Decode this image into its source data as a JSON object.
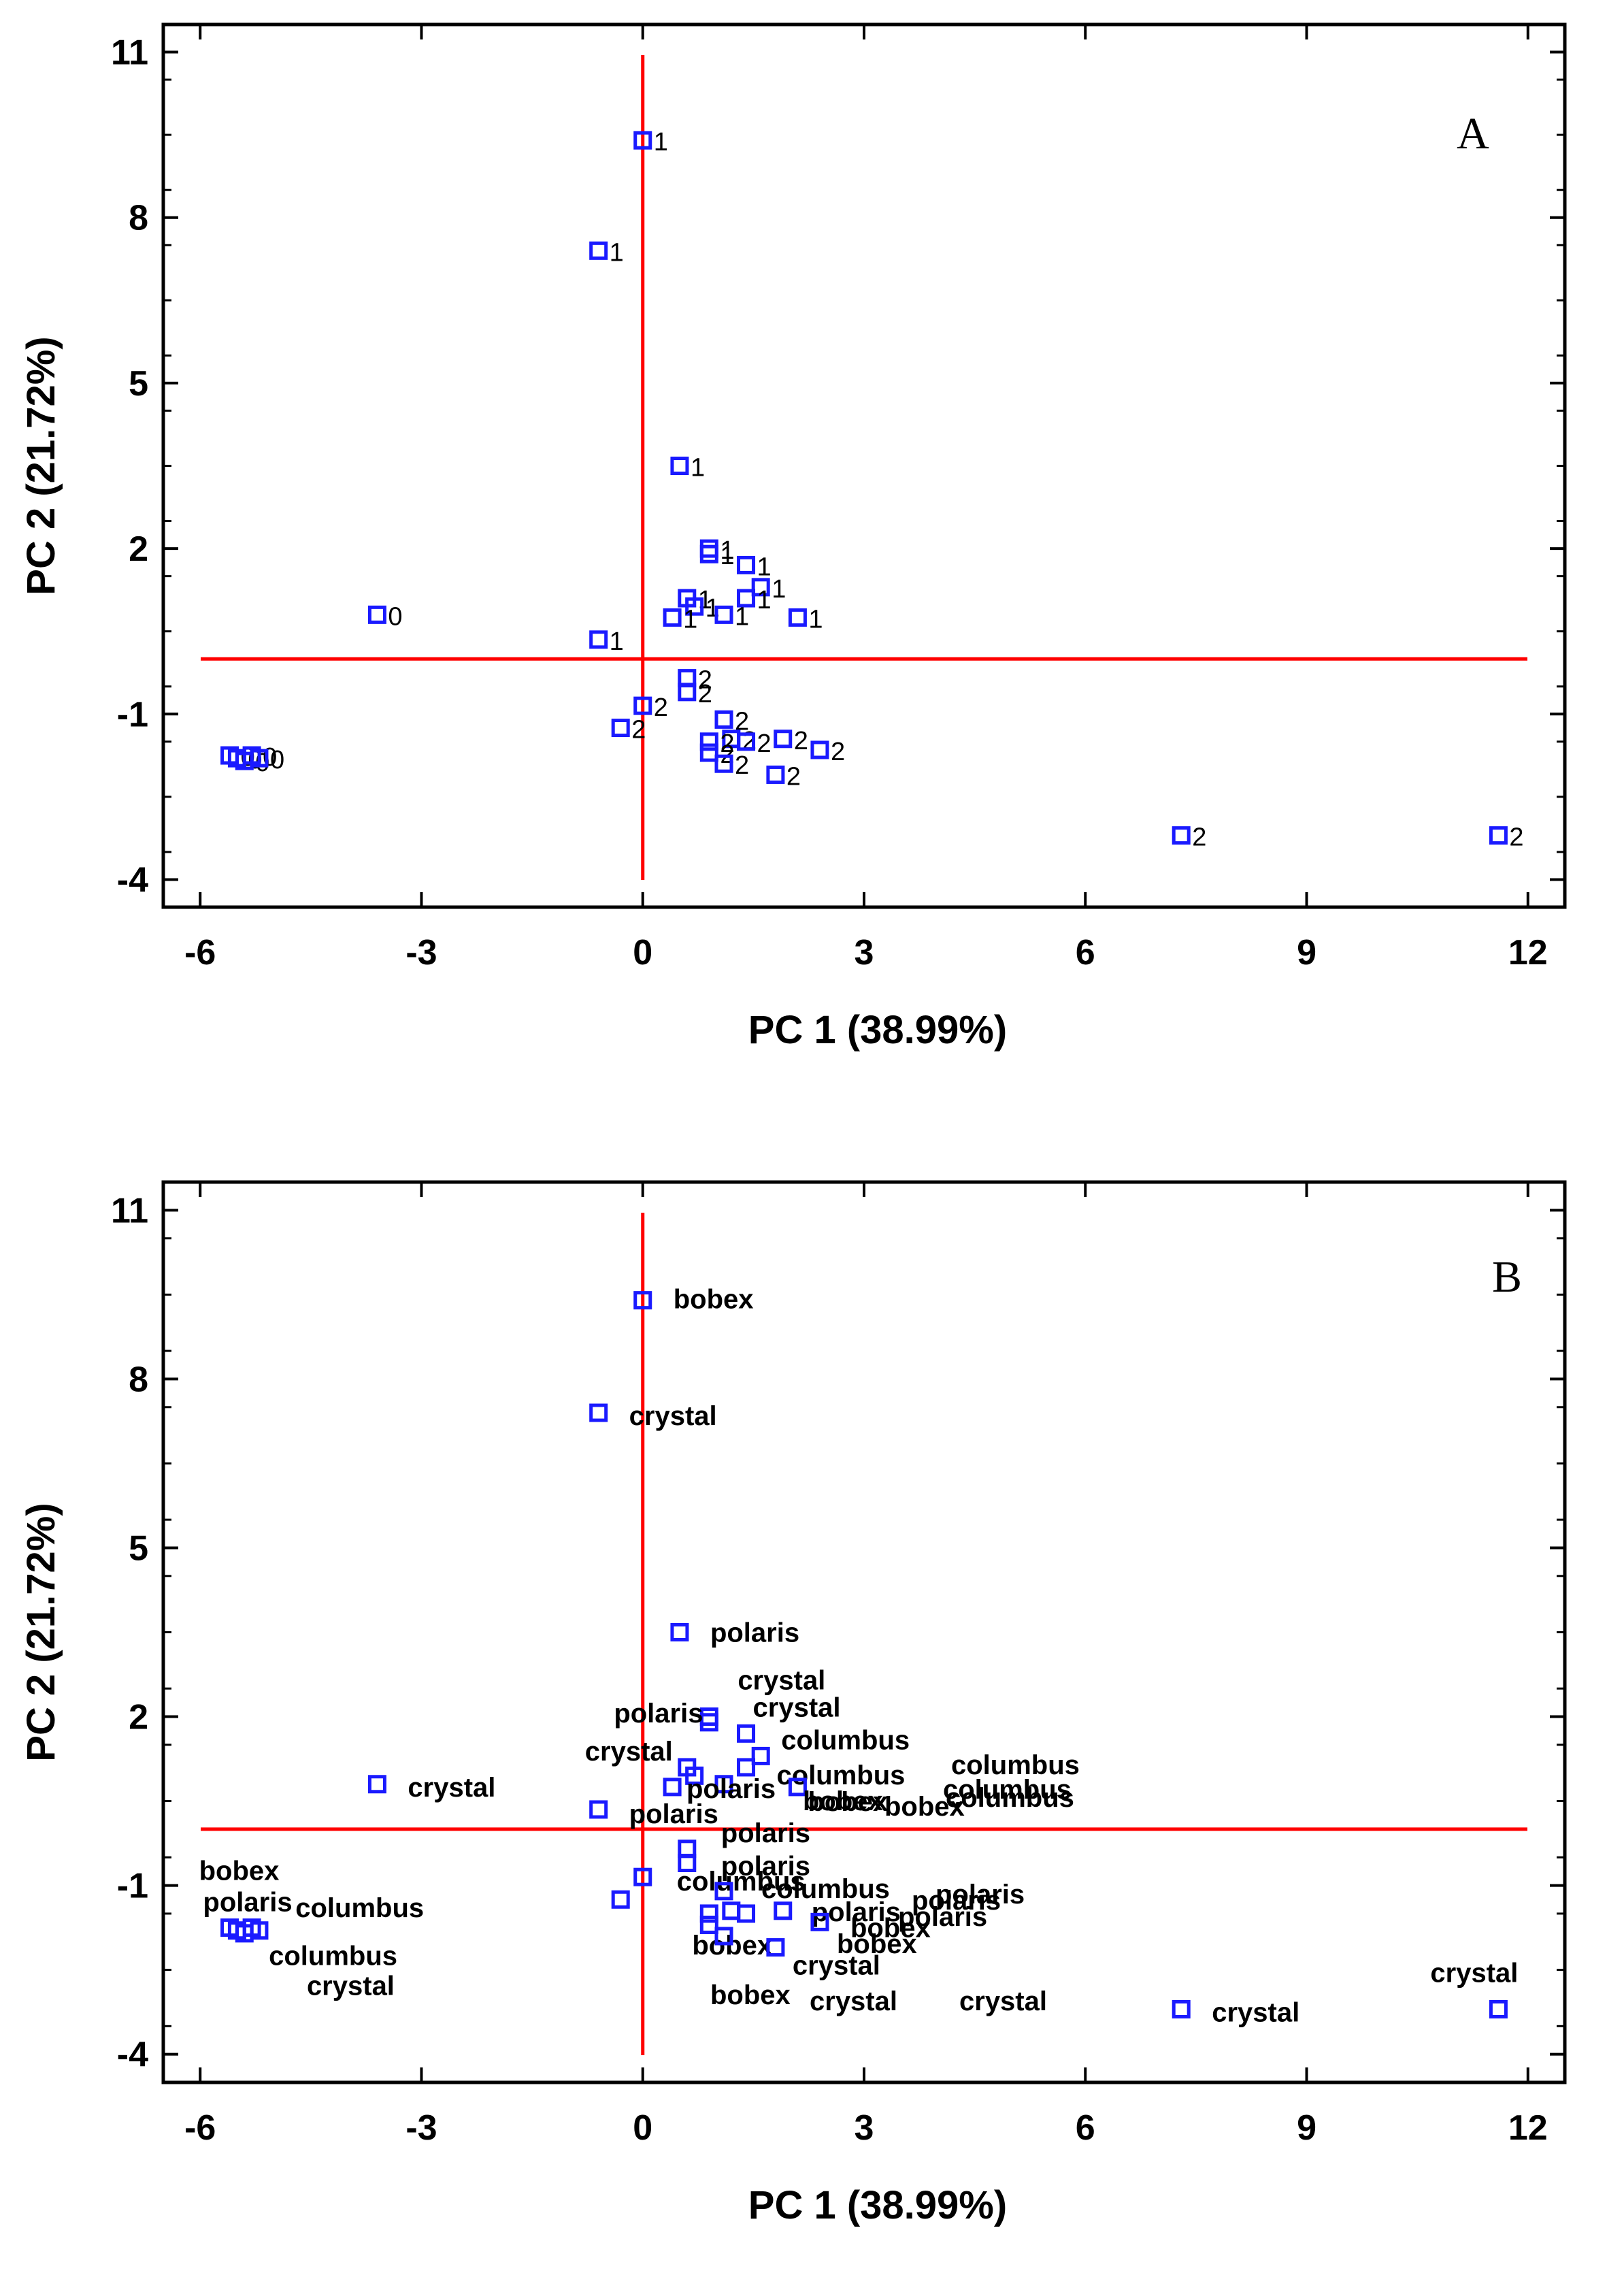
{
  "colors": {
    "marker": "#1a1aff",
    "reference": "#ff0000",
    "frame": "#000000"
  },
  "chart_data": [
    {
      "type": "scatter",
      "panel": "A",
      "xlabel": "PC 1 (38.99%)",
      "ylabel": "PC 2 (21.72%)",
      "xlim": [
        -6.5,
        12.5
      ],
      "ylim": [
        -4.5,
        11.5
      ],
      "xticks": [
        -6,
        -3,
        0,
        3,
        6,
        9,
        12
      ],
      "yticks": [
        -4,
        -1,
        2,
        5,
        8,
        11
      ],
      "points": [
        {
          "x": 0.0,
          "y": 9.4,
          "label": "1"
        },
        {
          "x": -0.6,
          "y": 7.4,
          "label": "1"
        },
        {
          "x": 0.5,
          "y": 3.5,
          "label": "1"
        },
        {
          "x": 0.9,
          "y": 2.0,
          "label": "1"
        },
        {
          "x": 0.9,
          "y": 1.9,
          "label": "1"
        },
        {
          "x": 1.4,
          "y": 1.7,
          "label": "1"
        },
        {
          "x": 1.6,
          "y": 1.3,
          "label": "1"
        },
        {
          "x": 1.4,
          "y": 1.1,
          "label": "1"
        },
        {
          "x": 0.6,
          "y": 1.1,
          "label": "1"
        },
        {
          "x": 0.7,
          "y": 0.95,
          "label": "1"
        },
        {
          "x": 0.4,
          "y": 0.75,
          "label": "1"
        },
        {
          "x": 1.1,
          "y": 0.8,
          "label": "1"
        },
        {
          "x": 2.1,
          "y": 0.75,
          "label": "1"
        },
        {
          "x": -0.6,
          "y": 0.35,
          "label": "1"
        },
        {
          "x": -3.6,
          "y": 0.8,
          "label": "0"
        },
        {
          "x": -5.6,
          "y": -1.75,
          "label": "0"
        },
        {
          "x": -5.5,
          "y": -1.8,
          "label": "0"
        },
        {
          "x": -5.4,
          "y": -1.85,
          "label": "0"
        },
        {
          "x": -5.3,
          "y": -1.75,
          "label": "0"
        },
        {
          "x": -5.2,
          "y": -1.8,
          "label": "0"
        },
        {
          "x": 0.6,
          "y": -0.35,
          "label": "2"
        },
        {
          "x": 0.6,
          "y": -0.6,
          "label": "2"
        },
        {
          "x": 0.0,
          "y": -0.85,
          "label": "2"
        },
        {
          "x": -0.3,
          "y": -1.25,
          "label": "2"
        },
        {
          "x": 1.1,
          "y": -1.1,
          "label": "2"
        },
        {
          "x": 1.2,
          "y": -1.45,
          "label": "2"
        },
        {
          "x": 0.9,
          "y": -1.5,
          "label": "2"
        },
        {
          "x": 0.9,
          "y": -1.7,
          "label": "2"
        },
        {
          "x": 1.1,
          "y": -1.9,
          "label": "2"
        },
        {
          "x": 1.4,
          "y": -1.5,
          "label": "2"
        },
        {
          "x": 1.9,
          "y": -1.45,
          "label": "2"
        },
        {
          "x": 2.4,
          "y": -1.65,
          "label": "2"
        },
        {
          "x": 1.8,
          "y": -2.1,
          "label": "2"
        },
        {
          "x": 7.3,
          "y": -3.2,
          "label": "2"
        },
        {
          "x": 11.6,
          "y": -3.2,
          "label": "2"
        }
      ]
    },
    {
      "type": "scatter",
      "panel": "B",
      "xlabel": "PC 1 (38.99%)",
      "ylabel": "PC 2 (21.72%)",
      "xlim": [
        -6.5,
        12.5
      ],
      "ylim": [
        -4.5,
        11.5
      ],
      "xticks": [
        -6,
        -3,
        0,
        3,
        6,
        9,
        12
      ],
      "yticks": [
        -4,
        -1,
        2,
        5,
        8,
        11
      ],
      "points": [
        {
          "x": 0.0,
          "y": 9.4,
          "label": "bobex"
        },
        {
          "x": -0.6,
          "y": 7.4,
          "label": "crystal"
        },
        {
          "x": 0.5,
          "y": 3.5,
          "label": "polaris"
        },
        {
          "x": 0.9,
          "y": 2.0,
          "label": "crystal"
        },
        {
          "x": 0.9,
          "y": 1.9,
          "label": "polaris"
        },
        {
          "x": 1.4,
          "y": 1.7,
          "label": "crystal"
        },
        {
          "x": 1.6,
          "y": 1.3,
          "label": "columbus"
        },
        {
          "x": 1.4,
          "y": 1.1,
          "label": "columbus"
        },
        {
          "x": 0.6,
          "y": 1.1,
          "label": "crystal"
        },
        {
          "x": 0.7,
          "y": 0.95,
          "label": ""
        },
        {
          "x": 0.4,
          "y": 0.75,
          "label": ""
        },
        {
          "x": 1.1,
          "y": 0.8,
          "label": "polaris"
        },
        {
          "x": 2.1,
          "y": 0.75,
          "label": "bobex"
        },
        {
          "x": -0.6,
          "y": 0.35,
          "label": "polaris"
        },
        {
          "x": -3.6,
          "y": 0.8,
          "label": "crystal"
        },
        {
          "x": -5.6,
          "y": -1.75,
          "label": "bobex"
        },
        {
          "x": -5.5,
          "y": -1.8,
          "label": "polaris"
        },
        {
          "x": -5.4,
          "y": -1.85,
          "label": "columbus"
        },
        {
          "x": -5.3,
          "y": -1.75,
          "label": "columbus"
        },
        {
          "x": -5.2,
          "y": -1.8,
          "label": "crystal"
        },
        {
          "x": 0.6,
          "y": -0.35,
          "label": "polaris"
        },
        {
          "x": 0.6,
          "y": -0.6,
          "label": "polaris"
        },
        {
          "x": 0.0,
          "y": -0.85,
          "label": "columbus"
        },
        {
          "x": -0.3,
          "y": -1.25,
          "label": ""
        },
        {
          "x": 1.1,
          "y": -1.1,
          "label": "columbus"
        },
        {
          "x": 1.2,
          "y": -1.45,
          "label": ""
        },
        {
          "x": 0.9,
          "y": -1.5,
          "label": "bobex"
        },
        {
          "x": 0.9,
          "y": -1.7,
          "label": ""
        },
        {
          "x": 1.1,
          "y": -1.9,
          "label": "bobex"
        },
        {
          "x": 1.4,
          "y": -1.5,
          "label": ""
        },
        {
          "x": 1.9,
          "y": -1.45,
          "label": "polaris"
        },
        {
          "x": 2.4,
          "y": -1.65,
          "label": "bobex"
        },
        {
          "x": 1.8,
          "y": -2.1,
          "label": "crystal"
        },
        {
          "x": 7.3,
          "y": -3.2,
          "label": "crystal"
        },
        {
          "x": 11.6,
          "y": -3.2,
          "label": "crystal"
        }
      ],
      "extra_labels": [
        "columbus",
        "columbus",
        "columbus",
        "bobex",
        "bobex",
        "polaris",
        "polaris",
        "bobex",
        "polaris",
        "crystal",
        "crystal"
      ]
    }
  ]
}
